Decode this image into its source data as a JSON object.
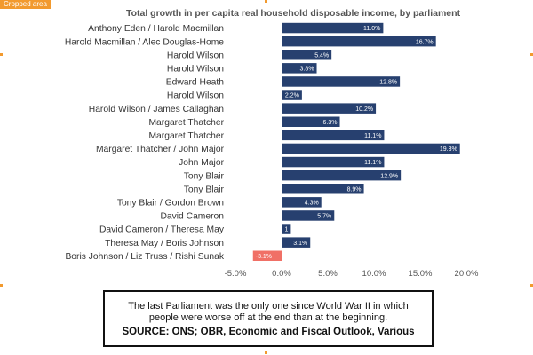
{
  "crop_tag": "Cropped area",
  "chart_data": {
    "type": "bar",
    "orientation": "horizontal",
    "title": "Total growth in per capita real household disposable income, by parliament",
    "categories": [
      "Anthony Eden / Harold Macmillan",
      "Harold Macmillan / Alec Douglas-Home",
      "Harold Wilson",
      "Harold Wilson",
      "Edward Heath",
      "Harold Wilson",
      "Harold Wilson / James Callaghan",
      "Margaret Thatcher",
      "Margaret Thatcher",
      "Margaret Thatcher / John Major",
      "John Major",
      "Tony Blair",
      "Tony Blair",
      "Tony Blair / Gordon Brown",
      "David Cameron",
      "David Cameron / Theresa May",
      "Theresa May / Boris Johnson",
      "Boris Johnson / Liz Truss / Rishi Sunak"
    ],
    "values": [
      11.0,
      16.7,
      5.4,
      3.8,
      12.8,
      2.2,
      10.2,
      6.3,
      11.1,
      19.3,
      11.1,
      12.9,
      8.9,
      4.3,
      5.7,
      1,
      3.1,
      -3.1
    ],
    "value_labels": [
      "11.0%",
      "16.7%",
      "5.4%",
      "3.8%",
      "12.8%",
      "2.2%",
      "10.2%",
      "6.3%",
      "11.1%",
      "19.3%",
      "11.1%",
      "12.9%",
      "8.9%",
      "4.3%",
      "5.7%",
      "1",
      "3.1%",
      "-3.1%"
    ],
    "xlim": [
      -5,
      20
    ],
    "xticks": [
      -5,
      0,
      5,
      10,
      15,
      20
    ],
    "xtick_labels": [
      "-5.0%",
      "0.0%",
      "5.0%",
      "10.0%",
      "15.0%",
      "20.0%"
    ],
    "grid": false,
    "colors": {
      "positive": "#27406f",
      "negative": "#f07066"
    }
  },
  "note": {
    "text": "The last Parliament was the only one since World War II in which people were worse off at the end than at the beginning.",
    "source": "SOURCE: ONS; OBR, Economic and Fiscal Outlook, Various"
  },
  "colors": {
    "crop_tag": "#f29a2e",
    "text": "#333333"
  }
}
